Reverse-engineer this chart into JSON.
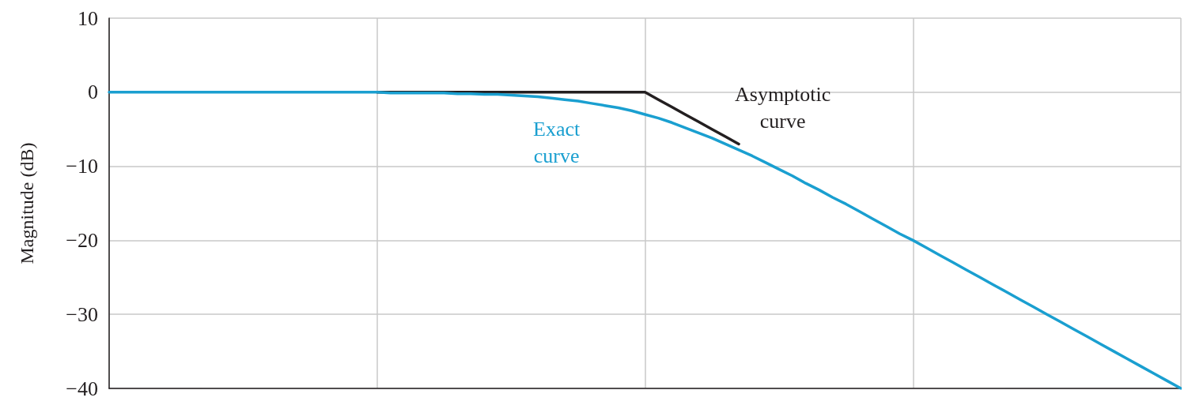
{
  "chart_data": {
    "type": "line",
    "ylabel": "Magnitude (dB)",
    "categories": [
      null,
      null,
      null,
      null,
      null,
      null,
      null,
      null,
      null,
      null,
      null,
      null,
      null,
      null,
      null,
      null,
      null,
      null,
      null,
      null,
      null,
      null,
      null,
      null,
      null,
      null,
      null,
      null,
      null,
      null,
      null,
      null,
      null,
      null,
      null,
      null,
      null,
      null,
      null,
      null,
      null,
      null,
      null,
      null,
      null,
      null,
      null,
      null,
      null,
      null,
      null,
      null,
      null,
      null,
      null,
      null,
      null,
      null,
      null,
      null,
      null,
      null,
      null,
      null,
      null,
      null,
      null,
      null,
      null,
      null,
      null,
      null,
      null,
      null,
      null,
      null,
      null,
      null,
      null,
      null,
      null
    ],
    "ylim": [
      -40,
      10
    ],
    "yticks": [
      {
        "value": -40,
        "label": "−40"
      },
      {
        "value": -30,
        "label": "−30"
      },
      {
        "value": -20,
        "label": "−20"
      },
      {
        "value": -10,
        "label": "−10"
      },
      {
        "value": 0,
        "label": "0"
      },
      {
        "value": 10,
        "label": "10"
      }
    ],
    "grid": true,
    "tick_labels": "y",
    "marker": "none",
    "line_style": "solid",
    "series": [
      {
        "color": "#231f20",
        "values": [
          null,
          null,
          null,
          null,
          null,
          null,
          null,
          null,
          null,
          null,
          null,
          null,
          null,
          null,
          null,
          null,
          null,
          null,
          null,
          null,
          0,
          0,
          0,
          0,
          0,
          0,
          0,
          0,
          0,
          0,
          0,
          0,
          0,
          0,
          0,
          0,
          0,
          0,
          0,
          0,
          0,
          -1,
          -2,
          -3,
          -4,
          -5,
          -6,
          -7,
          null,
          null,
          null,
          null,
          null,
          null,
          null,
          null,
          null,
          null,
          null,
          null,
          null,
          null,
          null,
          null,
          null,
          null,
          null,
          null,
          null,
          null,
          null,
          null,
          null,
          null,
          null,
          null,
          null,
          null,
          null,
          null,
          null
        ]
      },
      {
        "color": "#1a9fd0",
        "values": [
          0,
          0,
          0,
          0,
          0,
          0,
          0,
          0,
          0,
          0,
          0,
          0,
          0,
          0,
          0,
          0,
          0,
          0,
          0,
          0,
          0,
          -0.1,
          -0.1,
          -0.1,
          -0.1,
          -0.1,
          -0.2,
          -0.2,
          -0.3,
          -0.3,
          -0.4,
          -0.5,
          -0.6,
          -0.8,
          -1,
          -1.2,
          -1.5,
          -1.8,
          -2.1,
          -2.5,
          -3,
          -3.5,
          -4.1,
          -4.8,
          -5.5,
          -6.2,
          -7,
          -7.8,
          -8.6,
          -9.5,
          -10.4,
          -11.3,
          -12.3,
          -13.2,
          -14.2,
          -15.1,
          -16.1,
          -17.1,
          -18.1,
          -19.1,
          -20,
          -21,
          -22,
          -23,
          -24,
          -25,
          -26,
          -27,
          -28,
          -29,
          -30,
          -31,
          -32,
          -33,
          -34,
          -35,
          -36,
          -37,
          -38,
          -39,
          -40
        ]
      }
    ],
    "annotations": [
      "Asymptotic\ncurve",
      "Exact\ncurve"
    ]
  }
}
